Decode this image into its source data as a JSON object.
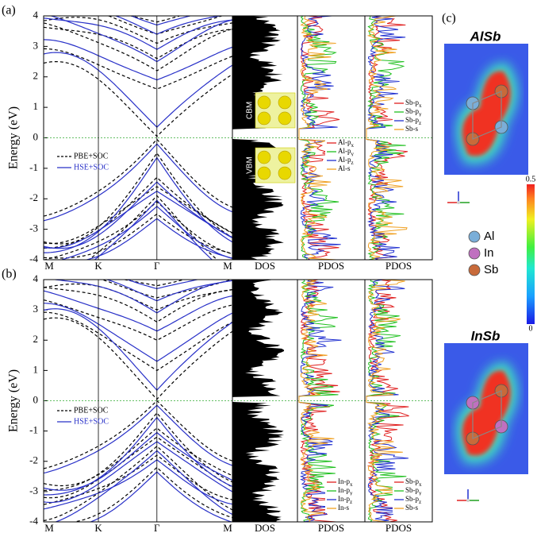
{
  "panels": [
    {
      "label": "(a)",
      "y_axis_label": "Energy (eV)",
      "ylim": [
        -4,
        4
      ],
      "yticks": [
        -4,
        -3,
        -2,
        -1,
        0,
        1,
        2,
        3,
        4
      ],
      "kpoints": [
        "M",
        "K",
        "Γ",
        "M"
      ],
      "columns": [
        "DOS",
        "PDOS",
        "PDOS"
      ],
      "legend": [
        "PBE+SOC",
        "HSE+SOC"
      ],
      "dos_labels": [
        "CBM",
        "VBM"
      ],
      "pdos_legends": [
        [
          {
            "text": "Al-p",
            "sub": "x"
          },
          {
            "text": "Al-p",
            "sub": "y"
          },
          {
            "text": "Al-p",
            "sub": "z"
          },
          {
            "text": "Al-s"
          }
        ],
        [
          {
            "text": "Sb-p",
            "sub": "x"
          },
          {
            "text": "Sb-p",
            "sub": "y"
          },
          {
            "text": "Sb-p",
            "sub": "z"
          },
          {
            "text": "Sb-s"
          }
        ]
      ]
    },
    {
      "label": "(b)",
      "y_axis_label": "Energy (eV)",
      "ylim": [
        -4,
        4
      ],
      "yticks": [
        -4,
        -3,
        -2,
        -1,
        0,
        1,
        2,
        3,
        4
      ],
      "kpoints": [
        "M",
        "K",
        "Γ",
        "M"
      ],
      "columns": [
        "DOS",
        "PDOS",
        "PDOS"
      ],
      "legend": [
        "PBE+SOC",
        "HSE+SOC"
      ],
      "pdos_legends": [
        [
          {
            "text": "In-p",
            "sub": "x"
          },
          {
            "text": "In-p",
            "sub": "y"
          },
          {
            "text": "In-p",
            "sub": "z"
          },
          {
            "text": "In-s"
          }
        ],
        [
          {
            "text": "Sb-p",
            "sub": "x"
          },
          {
            "text": "Sb-p",
            "sub": "y"
          },
          {
            "text": "Sb-p",
            "sub": "z"
          },
          {
            "text": "Sb-s"
          }
        ]
      ]
    }
  ],
  "side": {
    "label": "(c)",
    "maps": [
      "AlSb",
      "InSb"
    ],
    "colorbar_ticks": [
      0.5,
      0
    ],
    "species": [
      "Al",
      "In",
      "Sb"
    ]
  }
}
